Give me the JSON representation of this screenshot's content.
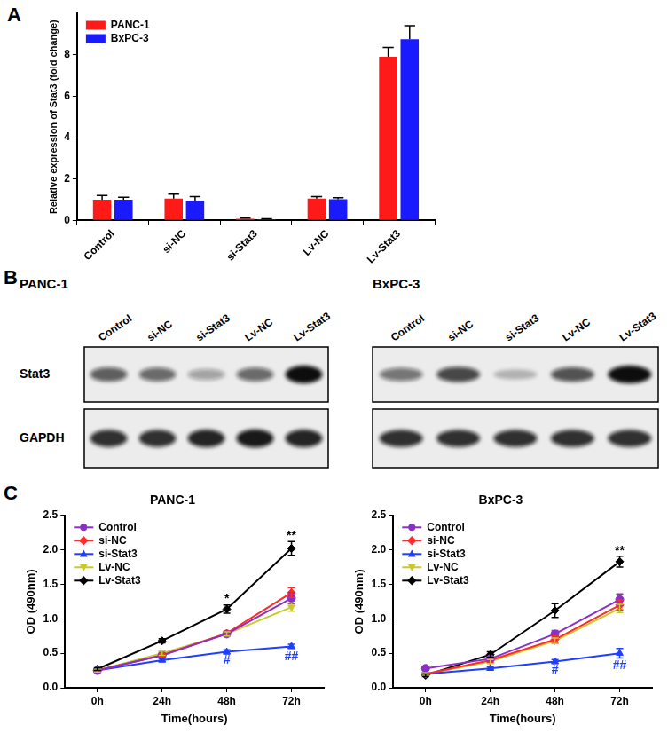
{
  "panel_labels": [
    "A",
    "B",
    "C"
  ],
  "chart_data": [
    {
      "type": "bar",
      "y_label": "Relative expression of Stat3 (fold change)",
      "categories": [
        "Control",
        "si-NC",
        "si-Stat3",
        "Lv-NC",
        "Lv-Stat3"
      ],
      "series": [
        {
          "name": "PANC-1",
          "color": "#ff1a1a",
          "values": [
            1.0,
            1.05,
            0.08,
            1.05,
            7.9
          ],
          "errors": [
            0.2,
            0.22,
            0.03,
            0.1,
            0.45
          ]
        },
        {
          "name": "BxPC-3",
          "color": "#1a1aff",
          "values": [
            1.0,
            0.95,
            0.06,
            1.02,
            8.75
          ],
          "errors": [
            0.12,
            0.2,
            0.02,
            0.08,
            0.65
          ]
        }
      ],
      "ylim": [
        0,
        10
      ],
      "yticks": [
        0,
        2,
        4,
        6,
        8
      ],
      "grid": false,
      "legend": "upper left"
    },
    {
      "type": "line",
      "title": "PANC-1",
      "x_label": "Time(hours)",
      "y_label": "OD (490nm)",
      "categories": [
        "0h",
        "24h",
        "48h",
        "72h"
      ],
      "series": [
        {
          "name": "Control",
          "color": "#8b2fc9",
          "marker": "circle",
          "values": [
            0.25,
            0.47,
            0.78,
            1.3
          ],
          "errors": [
            0.02,
            0.03,
            0.03,
            0.08
          ]
        },
        {
          "name": "si-NC",
          "color": "#ff2a2a",
          "marker": "diamond",
          "values": [
            0.25,
            0.47,
            0.79,
            1.38
          ],
          "errors": [
            0.02,
            0.03,
            0.03,
            0.07
          ]
        },
        {
          "name": "si-Stat3",
          "color": "#1f3fff",
          "marker": "triangle",
          "values": [
            0.25,
            0.4,
            0.52,
            0.6
          ],
          "errors": [
            0.02,
            0.02,
            0.03,
            0.03
          ]
        },
        {
          "name": "Lv-NC",
          "color": "#c9c92a",
          "marker": "triangle-down",
          "values": [
            0.25,
            0.5,
            0.78,
            1.17
          ],
          "errors": [
            0.02,
            0.03,
            0.03,
            0.06
          ]
        },
        {
          "name": "Lv-Stat3",
          "color": "#000000",
          "marker": "diamond",
          "values": [
            0.27,
            0.68,
            1.14,
            2.02
          ],
          "errors": [
            0.02,
            0.03,
            0.06,
            0.1
          ]
        }
      ],
      "ylim": [
        0,
        2.5
      ],
      "yticks": [
        {
          "value": 0,
          "label": "0.0"
        },
        0.5,
        {
          "value": 1,
          "label": "1.0"
        },
        1.5,
        {
          "value": 2,
          "label": "2.0"
        },
        2.5
      ],
      "grid": false,
      "legend": "upper left",
      "annotations": [
        {
          "text": "*",
          "x": "48h",
          "y": 1.28,
          "color": "#000000"
        },
        {
          "text": "**",
          "x": "72h",
          "y": 2.2,
          "color": "#000000"
        },
        {
          "text": "#",
          "x": "48h",
          "y": 0.4,
          "color": "#1f3fff"
        },
        {
          "text": "##",
          "x": "72h",
          "y": 0.45,
          "color": "#1f3fff"
        }
      ]
    },
    {
      "type": "line",
      "title": "BxPC-3",
      "x_label": "Time(hours)",
      "y_label": "OD (490nm)",
      "categories": [
        "0h",
        "24h",
        "48h",
        "72h"
      ],
      "series": [
        {
          "name": "Control",
          "color": "#8b2fc9",
          "marker": "circle",
          "values": [
            0.28,
            0.42,
            0.78,
            1.28
          ],
          "errors": [
            0.02,
            0.03,
            0.05,
            0.08
          ]
        },
        {
          "name": "si-NC",
          "color": "#ff2a2a",
          "marker": "diamond",
          "values": [
            0.2,
            0.4,
            0.7,
            1.2
          ],
          "errors": [
            0.02,
            0.03,
            0.05,
            0.07
          ]
        },
        {
          "name": "si-Stat3",
          "color": "#1f3fff",
          "marker": "triangle",
          "values": [
            0.2,
            0.28,
            0.38,
            0.5
          ],
          "errors": [
            0.02,
            0.02,
            0.03,
            0.07
          ]
        },
        {
          "name": "Lv-NC",
          "color": "#c9c92a",
          "marker": "triangle-down",
          "values": [
            0.2,
            0.38,
            0.68,
            1.15
          ],
          "errors": [
            0.02,
            0.03,
            0.04,
            0.06
          ]
        },
        {
          "name": "Lv-Stat3",
          "color": "#000000",
          "marker": "diamond",
          "values": [
            0.18,
            0.48,
            1.12,
            1.83
          ],
          "errors": [
            0.02,
            0.04,
            0.1,
            0.08
          ]
        }
      ],
      "ylim": [
        0,
        2.5
      ],
      "yticks": [
        {
          "value": 0,
          "label": "0.0"
        },
        0.5,
        {
          "value": 1,
          "label": "1.0"
        },
        1.5,
        {
          "value": 2,
          "label": "2.0"
        },
        2.5
      ],
      "grid": false,
      "legend": "upper left",
      "annotations": [
        {
          "text": "**",
          "x": "72h",
          "y": 1.98,
          "color": "#000000"
        },
        {
          "text": "#",
          "x": "48h",
          "y": 0.26,
          "color": "#1f3fff"
        },
        {
          "text": "##",
          "x": "72h",
          "y": 0.32,
          "color": "#1f3fff"
        }
      ]
    }
  ],
  "western_blot": {
    "row_labels": [
      "Stat3",
      "GAPDH"
    ],
    "panels": [
      {
        "title": "PANC-1",
        "lanes": [
          "Control",
          "si-NC",
          "si-Stat3",
          "Lv-NC",
          "Lv-Stat3"
        ],
        "band_intensity": [
          [
            0.65,
            0.6,
            0.35,
            0.6,
            1.0
          ],
          [
            0.85,
            0.85,
            0.9,
            0.95,
            0.9
          ]
        ]
      },
      {
        "title": "BxPC-3",
        "lanes": [
          "Control",
          "si-NC",
          "si-Stat3",
          "Lv-NC",
          "Lv-Stat3"
        ],
        "band_intensity": [
          [
            0.55,
            0.75,
            0.25,
            0.7,
            1.0
          ],
          [
            0.85,
            0.85,
            0.85,
            0.85,
            0.85
          ]
        ]
      }
    ]
  }
}
